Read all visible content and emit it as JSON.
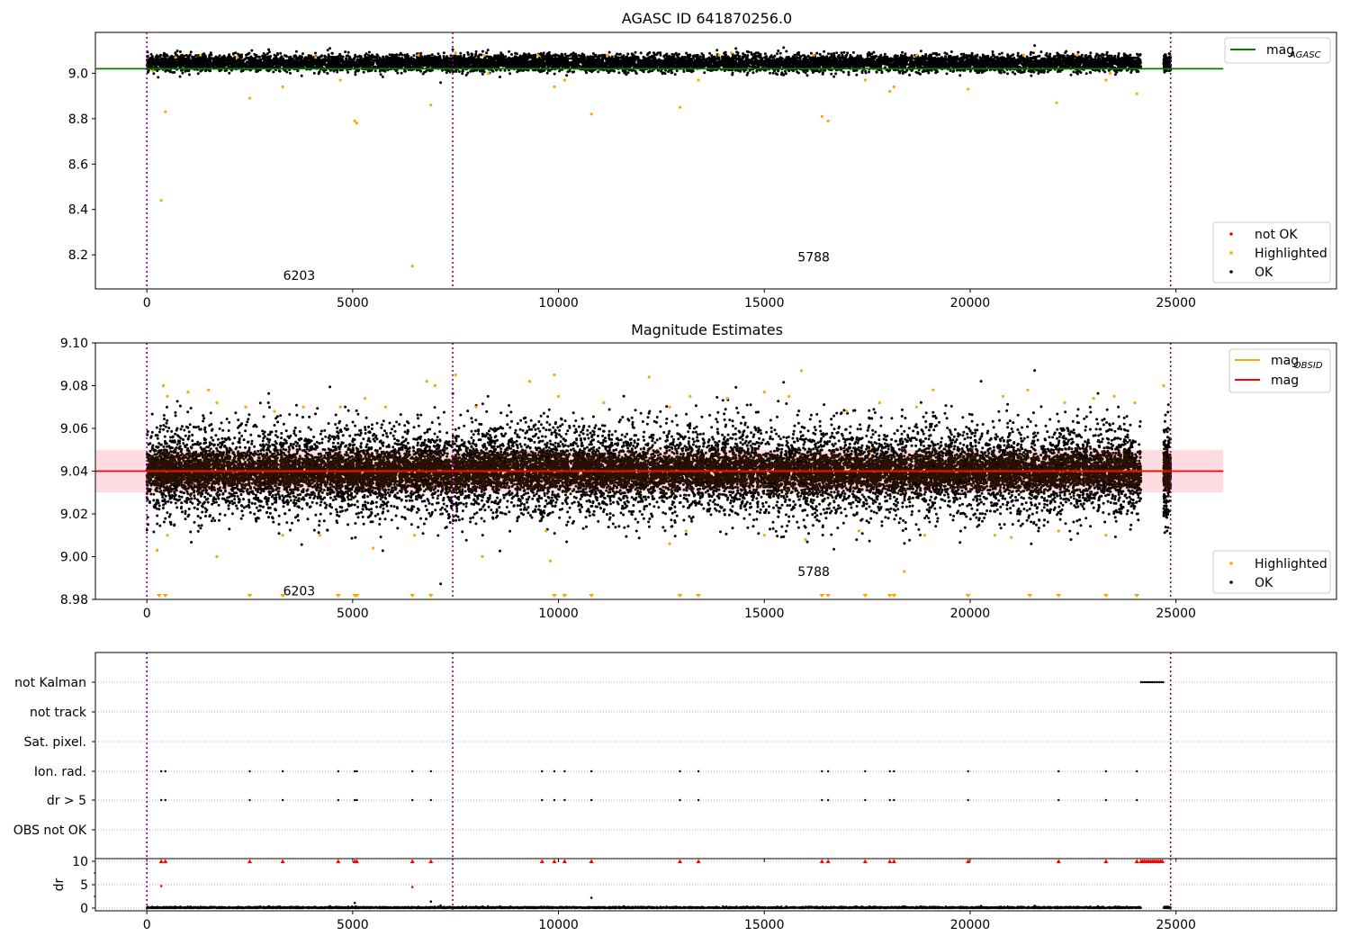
{
  "chart_data": [
    {
      "type": "scatter",
      "title": "AGASC ID 641870256.0",
      "xlabel": "",
      "ylabel": "",
      "xlim": [
        -1250,
        28900
      ],
      "ylim": [
        8.05,
        9.18
      ],
      "x_ticks": [
        0,
        5000,
        10000,
        15000,
        20000,
        25000
      ],
      "y_ticks": [
        8.2,
        8.4,
        8.6,
        8.8,
        9.0
      ],
      "obs_boundaries": [
        0,
        7430,
        24870
      ],
      "obs_labels": [
        {
          "text": "6203",
          "x": 3700,
          "y": 8.11
        },
        {
          "text": "5788",
          "x": 16200,
          "y": 8.19
        }
      ],
      "mag_agasc": 9.02,
      "mag_agasc_xrange": [
        -1250,
        26150
      ],
      "ok_band": {
        "center": 9.045,
        "spread": 0.018,
        "x_range": [
          0,
          24150
        ],
        "tail": [
          24700,
          24870
        ]
      },
      "series": [
        {
          "name": "not OK",
          "color": "#ff0000",
          "points": []
        },
        {
          "name": "Highlighted",
          "color": "#ffa500",
          "points": [
            [
              150,
              9.01
            ],
            [
              350,
              8.44
            ],
            [
              450,
              8.83
            ],
            [
              2500,
              8.89
            ],
            [
              3300,
              8.94
            ],
            [
              4700,
              8.97
            ],
            [
              5050,
              8.79
            ],
            [
              5100,
              8.78
            ],
            [
              6450,
              8.15
            ],
            [
              6900,
              8.86
            ],
            [
              9900,
              8.94
            ],
            [
              10150,
              8.97
            ],
            [
              10800,
              8.82
            ],
            [
              12950,
              8.85
            ],
            [
              13400,
              8.97
            ],
            [
              16400,
              8.81
            ],
            [
              16550,
              8.79
            ],
            [
              17450,
              8.97
            ],
            [
              18050,
              8.92
            ],
            [
              18150,
              8.94
            ],
            [
              19950,
              8.93
            ],
            [
              22100,
              8.87
            ],
            [
              23300,
              8.97
            ],
            [
              24050,
              8.91
            ],
            [
              700,
              9.07
            ],
            [
              1300,
              9.08
            ],
            [
              2200,
              9.07
            ],
            [
              4100,
              9.07
            ],
            [
              6600,
              9.08
            ],
            [
              7500,
              9.09
            ],
            [
              8200,
              9.08
            ],
            [
              8300,
              9.0
            ],
            [
              9500,
              9.08
            ],
            [
              11200,
              9.08
            ],
            [
              13900,
              9.08
            ],
            [
              14200,
              9.09
            ],
            [
              16200,
              9.08
            ],
            [
              18700,
              9.08
            ],
            [
              21300,
              9.08
            ],
            [
              22600,
              9.08
            ],
            [
              23400,
              9.0
            ]
          ]
        },
        {
          "name": "OK",
          "color": "#000000",
          "points": []
        }
      ],
      "legend": {
        "upper": "top-right",
        "lower": "bottom-right"
      }
    },
    {
      "type": "scatter",
      "title": "Magnitude Estimates",
      "xlabel": "",
      "ylabel": "",
      "xlim": [
        -1250,
        28900
      ],
      "ylim": [
        8.98,
        9.1
      ],
      "x_ticks": [
        0,
        5000,
        10000,
        15000,
        20000,
        25000
      ],
      "y_ticks": [
        8.98,
        9.0,
        9.02,
        9.04,
        9.06,
        9.08,
        9.1
      ],
      "obs_boundaries": [
        0,
        7430,
        24870
      ],
      "obs_labels": [
        {
          "text": "6203",
          "x": 3700,
          "y": 8.984
        },
        {
          "text": "5788",
          "x": 16200,
          "y": 8.993
        }
      ],
      "mag": 9.04,
      "mag_band": [
        9.03,
        9.05
      ],
      "mag_obsid": [
        {
          "x_range": [
            0,
            7430
          ],
          "value": 9.04
        },
        {
          "x_range": [
            7430,
            24870
          ],
          "value": 9.04
        }
      ],
      "mag_xrange": [
        -1250,
        26150
      ],
      "ok_band": {
        "center": 9.04,
        "spread": 0.009,
        "x_range": [
          0,
          24150
        ],
        "tail": [
          24700,
          24870
        ]
      },
      "below_limit_markers_x": [
        300,
        450,
        2500,
        3300,
        4650,
        5050,
        5100,
        6450,
        6900,
        9900,
        10150,
        10800,
        12950,
        13400,
        16400,
        16550,
        17450,
        18050,
        18150,
        19950,
        21450,
        22150,
        23300,
        24050
      ],
      "series": [
        {
          "name": "Highlighted",
          "color": "#ffa500",
          "points": [
            [
              250,
              9.003
            ],
            [
              500,
              9.01
            ],
            [
              1700,
              9.0
            ],
            [
              3300,
              9.01
            ],
            [
              4200,
              9.01
            ],
            [
              5500,
              9.004
            ],
            [
              6500,
              9.01
            ],
            [
              8150,
              9.0
            ],
            [
              9800,
              8.998
            ],
            [
              9700,
              9.012
            ],
            [
              12700,
              9.006
            ],
            [
              13100,
              9.012
            ],
            [
              15000,
              9.01
            ],
            [
              16000,
              9.008
            ],
            [
              17300,
              9.012
            ],
            [
              18400,
              8.993
            ],
            [
              18900,
              9.01
            ],
            [
              20600,
              9.01
            ],
            [
              21000,
              9.009
            ],
            [
              22150,
              9.012
            ],
            [
              23300,
              9.01
            ],
            [
              400,
              9.08
            ],
            [
              500,
              9.075
            ],
            [
              1000,
              9.077
            ],
            [
              1500,
              9.078
            ],
            [
              1700,
              9.072
            ],
            [
              2400,
              9.07
            ],
            [
              3100,
              9.068
            ],
            [
              3800,
              9.07
            ],
            [
              4700,
              9.07
            ],
            [
              5300,
              9.074
            ],
            [
              5800,
              9.07
            ],
            [
              6800,
              9.082
            ],
            [
              7000,
              9.08
            ],
            [
              7500,
              9.085
            ],
            [
              8000,
              9.07
            ],
            [
              9300,
              9.082
            ],
            [
              9900,
              9.085
            ],
            [
              10000,
              9.075
            ],
            [
              11100,
              9.072
            ],
            [
              12200,
              9.084
            ],
            [
              12700,
              9.07
            ],
            [
              13200,
              9.075
            ],
            [
              14100,
              9.074
            ],
            [
              15000,
              9.077
            ],
            [
              15600,
              9.075
            ],
            [
              15900,
              9.087
            ],
            [
              17000,
              9.068
            ],
            [
              17800,
              9.072
            ],
            [
              18700,
              9.07
            ],
            [
              19100,
              9.078
            ],
            [
              20800,
              9.075
            ],
            [
              21400,
              9.078
            ],
            [
              22300,
              9.072
            ],
            [
              23000,
              9.074
            ],
            [
              23500,
              9.075
            ],
            [
              24000,
              9.072
            ],
            [
              24700,
              9.08
            ]
          ]
        },
        {
          "name": "OK",
          "color": "#000000",
          "points": []
        }
      ],
      "legend": {
        "upper": "top-right",
        "lower": "bottom-right"
      }
    },
    {
      "type": "scatter",
      "title": "",
      "xlabel": "",
      "ylabel": "dr",
      "xlim": [
        -1250,
        28900
      ],
      "x_ticks": [
        0,
        5000,
        10000,
        15000,
        20000,
        25000
      ],
      "flag_rows": [
        "not Kalman",
        "not track",
        "Sat. pixel.",
        "Ion. rad.",
        "dr > 5",
        "OBS not OK"
      ],
      "flags": {
        "not Kalman": {
          "ranges": [
            [
              24150,
              24700
            ]
          ],
          "points": []
        },
        "not track": {
          "ranges": [],
          "points": []
        },
        "Sat. pixel.": {
          "ranges": [],
          "points": []
        },
        "Ion. rad.": {
          "ranges": [],
          "points": [
            350,
            450,
            2500,
            3300,
            4650,
            5050,
            5100,
            6450,
            6900,
            9600,
            9900,
            10150,
            10800,
            12950,
            13400,
            16400,
            16550,
            17450,
            18050,
            18150,
            19950,
            22150,
            23300,
            24050
          ]
        },
        "dr > 5": {
          "ranges": [],
          "points": [
            350,
            450,
            2500,
            3300,
            4650,
            5050,
            5100,
            6450,
            6900,
            9600,
            9900,
            10150,
            10800,
            12950,
            13400,
            16400,
            16550,
            17450,
            18050,
            18150,
            19950,
            22150,
            23300,
            24050
          ]
        },
        "OBS not OK": {
          "ranges": [],
          "points": []
        }
      },
      "dr_ylim": [
        0,
        10
      ],
      "dr_ticks": [
        0,
        5,
        10
      ],
      "dr_capped_x": [
        350,
        450,
        2500,
        3300,
        4650,
        5050,
        5100,
        6450,
        6900,
        9600,
        9900,
        10150,
        10800,
        12950,
        13400,
        16400,
        16550,
        17450,
        18050,
        18150,
        19950,
        22150,
        23300,
        24050
      ],
      "dr_capped_range": [
        24150,
        24700
      ],
      "dr_notable": [
        [
          350,
          4.7
        ],
        [
          6450,
          4.5
        ],
        [
          10800,
          2.2
        ],
        [
          5050,
          1.1
        ],
        [
          6900,
          1.4
        ]
      ],
      "dr_baseline_x_range": [
        0,
        24150
      ],
      "dr_baseline_tail": [
        24700,
        24870
      ]
    }
  ],
  "legend_labels": {
    "mag_agasc_main": "mag",
    "mag_agasc_sub": "AGASC",
    "not_ok": "not OK",
    "highlighted": "Highlighted",
    "ok": "OK",
    "mag_obsid_main": "mag",
    "mag_obsid_sub": "OBSID",
    "mag": "mag"
  },
  "colors": {
    "ok": "#000000",
    "highlighted": "#ffa500",
    "not_ok": "#ff0000",
    "agasc_line": "#008000",
    "mag_line": "#ff0000",
    "mag_obsid_line": "#ffa500",
    "boundary": "#800080",
    "band": "#ffc0cb",
    "dense_overlay": "#2a1000"
  }
}
